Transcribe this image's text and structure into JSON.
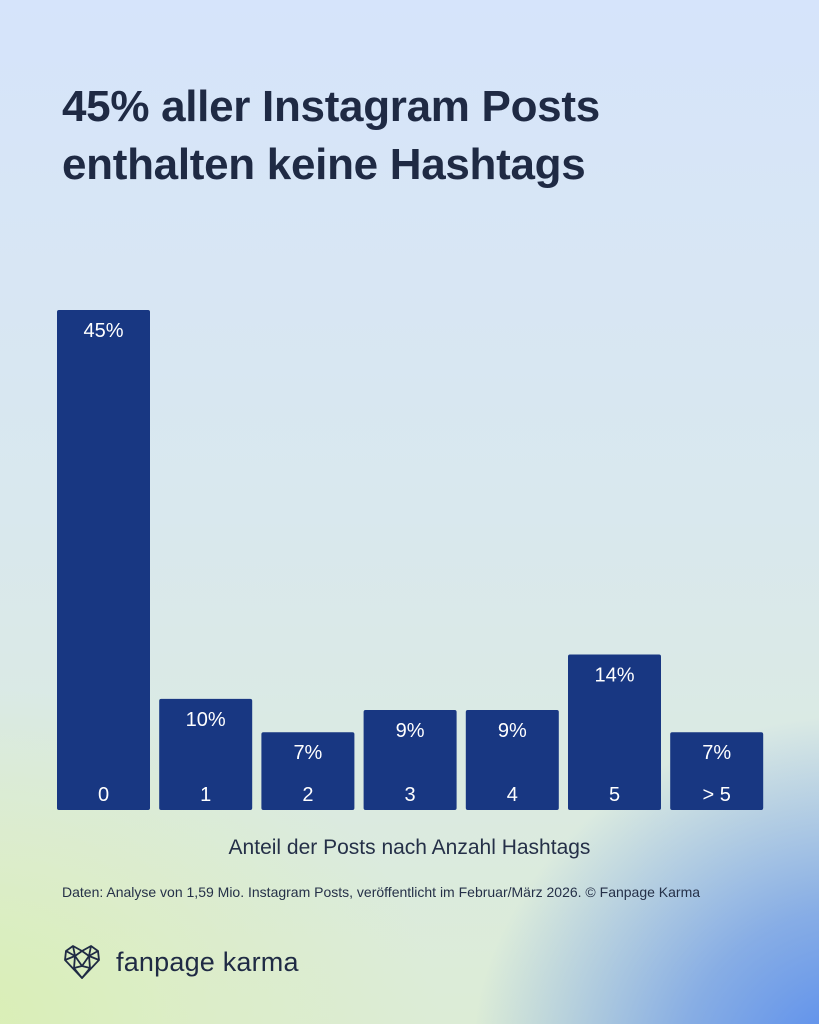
{
  "title_lines": [
    "45% aller Instagram Posts",
    "enthalten keine Hashtags"
  ],
  "chart_data": {
    "type": "bar",
    "title": "45% aller Instagram Posts enthalten keine Hashtags",
    "categories": [
      "0",
      "1",
      "2",
      "3",
      "4",
      "5",
      "> 5"
    ],
    "values": [
      45,
      10,
      7,
      9,
      9,
      14,
      7
    ],
    "value_labels": [
      "45%",
      "10%",
      "7%",
      "9%",
      "9%",
      "14%",
      "7%"
    ],
    "unit": "%",
    "xlabel": "Anteil der Posts nach Anzahl Hashtags",
    "ylabel": "",
    "ylim": [
      0,
      45
    ],
    "grid": false,
    "legend": "none",
    "bar_color": "#183782",
    "label_color": "#ffffff"
  },
  "source": "Daten: Analyse von 1,59 Mio. Instagram Posts, veröffentlicht im Februar/März 2026. © Fanpage Karma",
  "brand": {
    "name": "fanpage karma",
    "icon": "heart-network-icon"
  },
  "colors": {
    "text": "#1f2a44",
    "bar": "#183782"
  }
}
